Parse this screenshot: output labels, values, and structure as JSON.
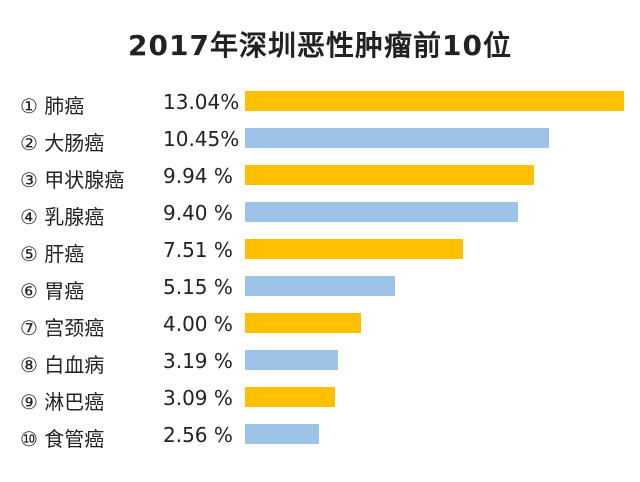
{
  "chart_data": {
    "type": "bar",
    "orientation": "horizontal",
    "title": "2017年深圳恶性肿瘤前10位",
    "categories": [
      "① 肺癌",
      "② 大肠癌",
      "③ 甲状腺癌",
      "④ 乳腺癌",
      "⑤ 肝癌",
      "⑥ 胃癌",
      "⑦ 宫颈癌",
      "⑧ 白血病",
      "⑨ 淋巴癌",
      "⑩ 食管癌"
    ],
    "values": [
      13.04,
      10.45,
      9.94,
      9.4,
      7.51,
      5.15,
      4.0,
      3.19,
      3.09,
      2.56
    ],
    "value_labels": [
      "13.04%",
      "10.45%",
      "9.94 %",
      "9.40 %",
      "7.51 %",
      "5.15 %",
      "4.00 %",
      "3.19 %",
      "3.09 %",
      "2.56 %"
    ],
    "bar_colors": [
      "#FFC000",
      "#9DC3E6",
      "#FFC000",
      "#9DC3E6",
      "#FFC000",
      "#9DC3E6",
      "#FFC000",
      "#9DC3E6",
      "#FFC000",
      "#9DC3E6"
    ],
    "xlim": [
      0,
      13.04
    ],
    "grid": false,
    "legend": "none"
  }
}
